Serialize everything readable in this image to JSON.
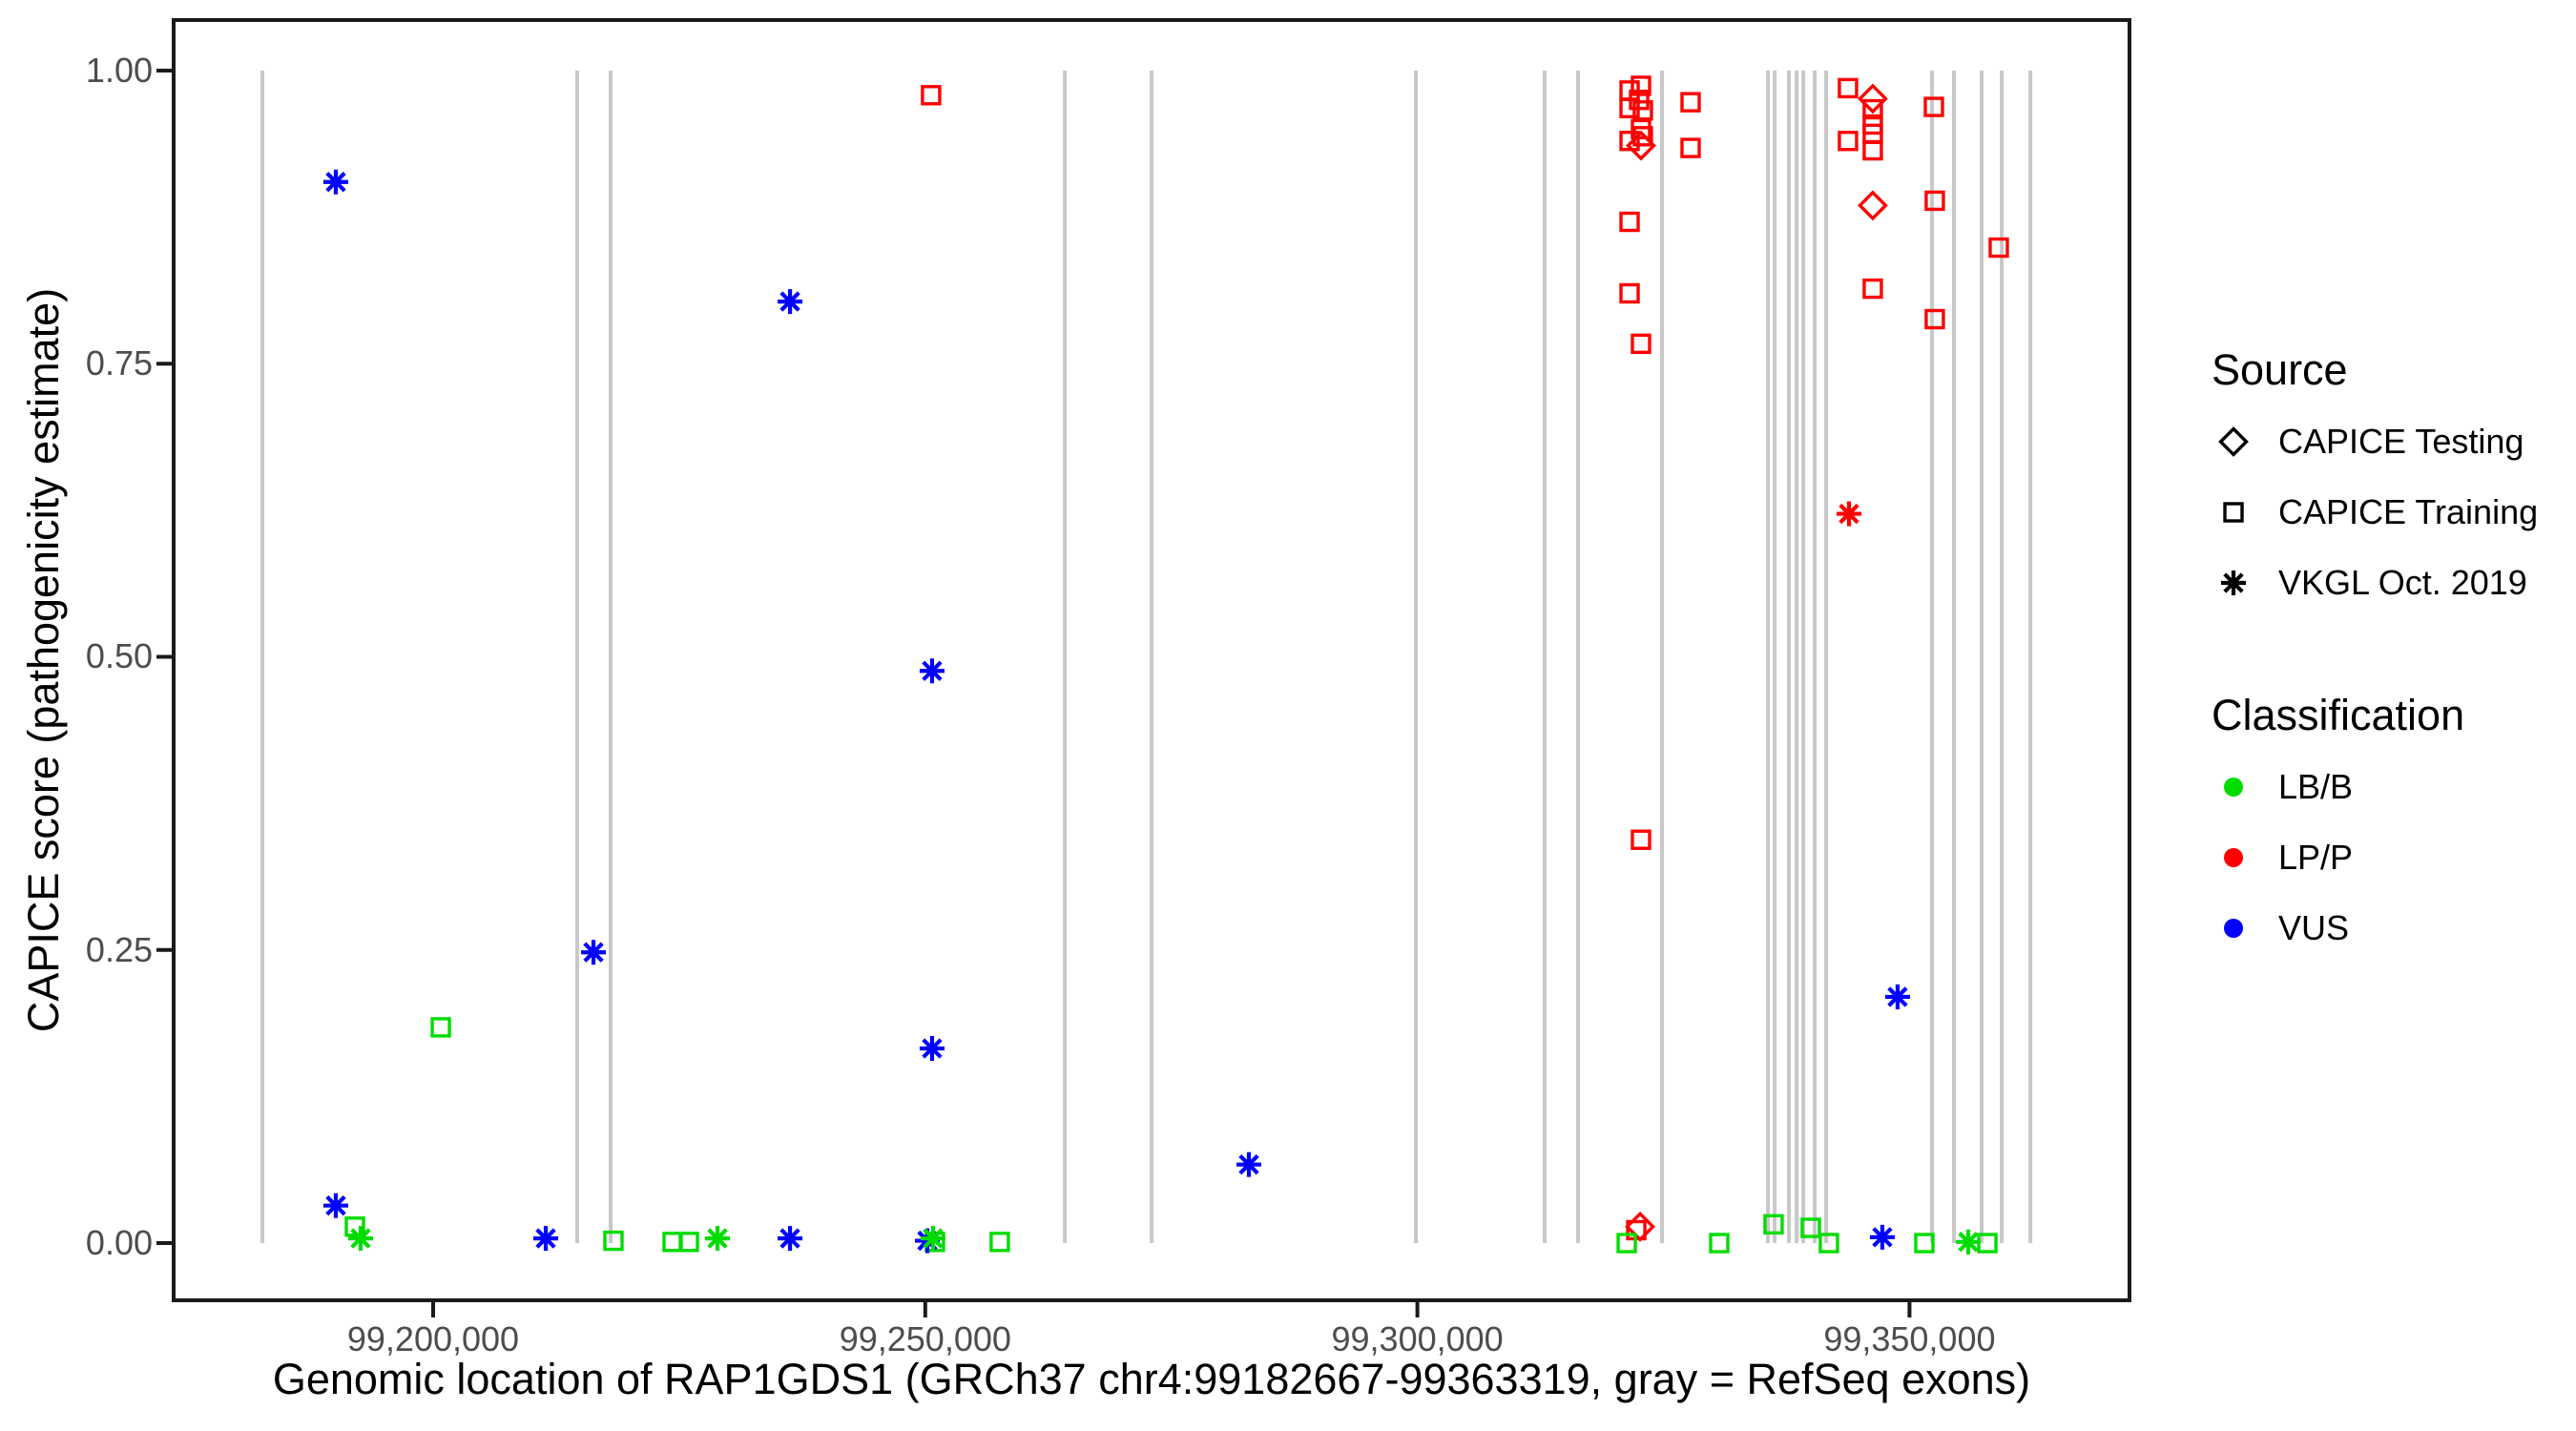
{
  "chart_data": {
    "type": "scatter",
    "title": "",
    "xlabel": "Genomic location of RAP1GDS1 (GRCh37 chr4:99182667-99363319, gray = RefSeq exons)",
    "ylabel": "CAPICE score (pathogenicity estimate)",
    "xlim": [
      99173634,
      99372352
    ],
    "ylim": [
      -0.0488,
      1.0431
    ],
    "grid": false,
    "x_ticks": [
      {
        "value": 99200000,
        "label": "99,200,000"
      },
      {
        "value": 99250000,
        "label": "99,250,000"
      },
      {
        "value": 99300000,
        "label": "99,300,000"
      },
      {
        "value": 99350000,
        "label": "99,350,000"
      }
    ],
    "y_ticks": [
      {
        "value": 0.0,
        "label": "0.00"
      },
      {
        "value": 0.25,
        "label": "0.25"
      },
      {
        "value": 0.5,
        "label": "0.50"
      },
      {
        "value": 0.75,
        "label": "0.75"
      },
      {
        "value": 1.0,
        "label": "1.00"
      }
    ],
    "colors": {
      "LB/B": "#00DC00",
      "LP/P": "#FF0000",
      "VUS": "#0000FF",
      "exon": "#C8C8C8",
      "axis": "#1a1a1a",
      "tick_text": "#4d4d4d"
    },
    "exon_note": "gray vertical lines = RefSeq exons, drawn from score 0 to 1",
    "exon_positions": [
      99182650,
      99214640,
      99218030,
      99264180,
      99273000,
      99299850,
      99312930,
      99316330,
      99324860,
      99335620,
      99336300,
      99337750,
      99338530,
      99339210,
      99340370,
      99341530,
      99352290,
      99354520,
      99357330,
      99359370,
      99362280
    ],
    "legend": {
      "source": {
        "title": "Source",
        "items": [
          {
            "label": "CAPICE Testing",
            "shape": "diamond"
          },
          {
            "label": "CAPICE Training",
            "shape": "square"
          },
          {
            "label": "VKGL Oct. 2019",
            "shape": "asterisk"
          }
        ]
      },
      "classification": {
        "title": "Classification",
        "items": [
          {
            "label": "LB/B",
            "color": "#00DC00"
          },
          {
            "label": "LP/P",
            "color": "#FF0000"
          },
          {
            "label": "VUS",
            "color": "#0000FF"
          }
        ]
      }
    },
    "points_format": "[genomic_position_bp, capice_score]",
    "series": [
      {
        "source": "CAPICE Testing",
        "classification": "LP/P",
        "shape": "diamond",
        "points": [
          [
            99346270,
            0.976
          ],
          [
            99322720,
            0.936
          ],
          [
            99346270,
            0.885
          ],
          [
            99322630,
            0.014
          ]
        ]
      },
      {
        "source": "CAPICE Training",
        "classification": "LP/P",
        "shape": "square",
        "points": [
          [
            99322720,
            0.987
          ],
          [
            99343750,
            0.985
          ],
          [
            99321560,
            0.983
          ],
          [
            99250590,
            0.979
          ],
          [
            99322530,
            0.975
          ],
          [
            99327760,
            0.973
          ],
          [
            99352480,
            0.969
          ],
          [
            99321560,
            0.968
          ],
          [
            99322910,
            0.966
          ],
          [
            99346270,
            0.967
          ],
          [
            99346270,
            0.954
          ],
          [
            99322720,
            0.95
          ],
          [
            99346270,
            0.946
          ],
          [
            99322910,
            0.944
          ],
          [
            99321560,
            0.94
          ],
          [
            99343750,
            0.94
          ],
          [
            99327760,
            0.934
          ],
          [
            99346270,
            0.932
          ],
          [
            99352570,
            0.889
          ],
          [
            99321560,
            0.871
          ],
          [
            99359070,
            0.849
          ],
          [
            99346270,
            0.814
          ],
          [
            99321560,
            0.81
          ],
          [
            99352570,
            0.788
          ],
          [
            99322720,
            0.767
          ],
          [
            99322720,
            0.344
          ],
          [
            99322240,
            0.011
          ]
        ]
      },
      {
        "source": "CAPICE Training",
        "classification": "LB/B",
        "shape": "square",
        "points": [
          [
            99200780,
            0.184
          ],
          [
            99192050,
            0.014
          ],
          [
            99218320,
            0.002
          ],
          [
            99224330,
            0.001
          ],
          [
            99225980,
            0.001
          ],
          [
            99250980,
            0.001
          ],
          [
            99257570,
            0.001
          ],
          [
            99321270,
            0.0
          ],
          [
            99330670,
            0.0
          ],
          [
            99336190,
            0.016
          ],
          [
            99339970,
            0.013
          ],
          [
            99341810,
            0.0
          ],
          [
            99351510,
            0.0
          ],
          [
            99357910,
            0.0
          ]
        ]
      },
      {
        "source": "VKGL Oct. 2019",
        "classification": "VUS",
        "shape": "asterisk",
        "points": [
          [
            99190110,
            0.905
          ],
          [
            99236260,
            0.803
          ],
          [
            99250690,
            0.488
          ],
          [
            99216290,
            0.248
          ],
          [
            99250690,
            0.166
          ],
          [
            99282880,
            0.067
          ],
          [
            99348790,
            0.21
          ],
          [
            99190110,
            0.032
          ],
          [
            99211440,
            0.004
          ],
          [
            99236260,
            0.004
          ],
          [
            99250210,
            0.002
          ],
          [
            99347240,
            0.005
          ]
        ]
      },
      {
        "source": "VKGL Oct. 2019",
        "classification": "LB/B",
        "shape": "asterisk",
        "points": [
          [
            99192630,
            0.004
          ],
          [
            99228890,
            0.004
          ],
          [
            99250790,
            0.004
          ],
          [
            99355970,
            0.001
          ]
        ]
      },
      {
        "source": "VKGL Oct. 2019",
        "classification": "LP/P",
        "shape": "asterisk",
        "points": [
          [
            99343850,
            0.622
          ]
        ]
      }
    ]
  }
}
